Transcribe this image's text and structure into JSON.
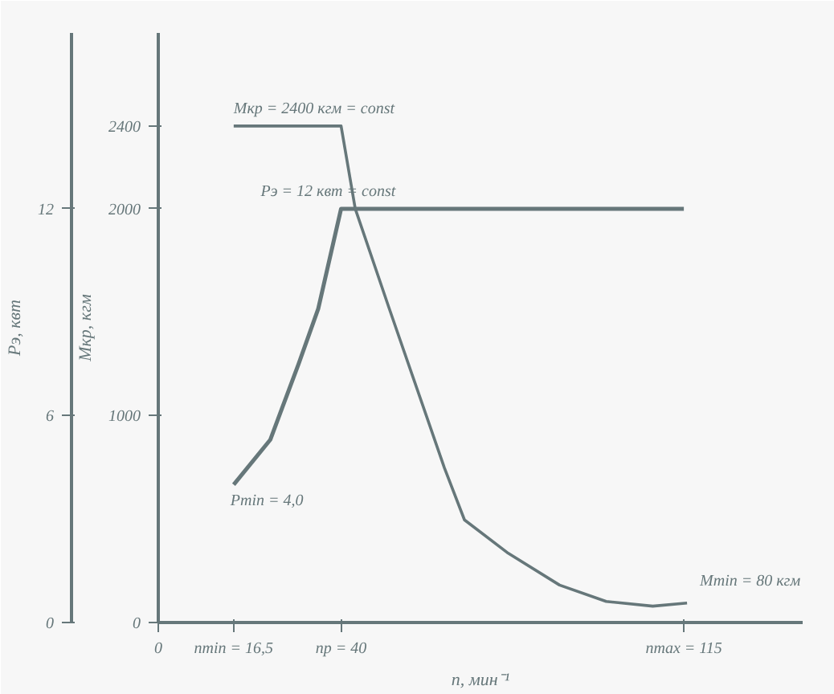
{
  "chart_data": {
    "type": "line",
    "xlabel": "n, мин⁻¹",
    "ylabel": "Мкр, кгм",
    "y2label": "Pэ, квт",
    "xlim": [
      0,
      141
    ],
    "xticks": [
      0,
      {
        "value": 16.5,
        "label": "nmin = 16,5"
      },
      {
        "value": 40,
        "label": "np = 40"
      },
      {
        "value": 115,
        "label": "nmax = 115"
      }
    ],
    "ylim": [
      0,
      2850
    ],
    "yticks": [
      0,
      1000,
      2000,
      2400
    ],
    "y2lim": [
      0,
      17.1
    ],
    "y2ticks": [
      0,
      6,
      12
    ],
    "series": [
      {
        "name": "Мкр = 2400 кгм = const",
        "color": "#66777a",
        "x": [
          16.5,
          40,
          43.1,
          50.5,
          62.6,
          67.0,
          76.3,
          87.8,
          98.0,
          108.2,
          115.7
        ],
        "values": [
          2400,
          2400,
          2000,
          1520,
          748,
          496,
          339,
          181,
          102,
          79,
          94
        ]
      },
      {
        "name": "Pэ = 12 квт = const",
        "color": "#66777a",
        "axis": "y2",
        "x": [
          16.5,
          24.5,
          30.7,
          35.0,
          40,
          115
        ],
        "values": [
          4.0,
          5.3,
          7.5,
          9.1,
          12,
          12
        ]
      }
    ],
    "annotations": [
      {
        "text": "Pmin = 4,0",
        "x": 16.5,
        "y": 667
      },
      {
        "text": "Mmin = 80 кгм",
        "x": 115.7,
        "y": 94
      }
    ],
    "grid": false,
    "marker": "none",
    "line_style": "solid"
  }
}
